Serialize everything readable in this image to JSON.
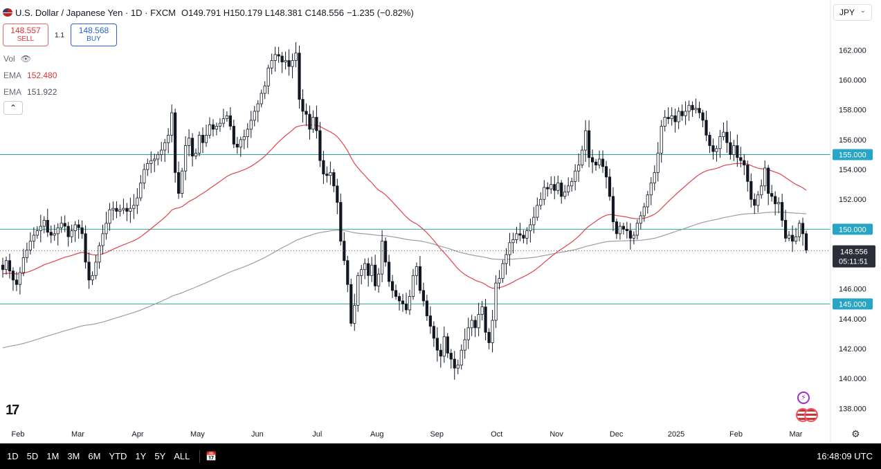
{
  "header": {
    "symbol": "U.S. Dollar / Japanese Yen · 1D · FXCM",
    "open_label": "O",
    "open": "149.791",
    "high_label": "H",
    "high": "150.179",
    "low_label": "L",
    "low": "148.381",
    "close_label": "C",
    "close": "148.556",
    "change": "−1.235 (−0.82%)"
  },
  "trade": {
    "sell_price": "148.557",
    "sell_label": "SELL",
    "spread": "1.1",
    "buy_price": "148.568",
    "buy_label": "BUY"
  },
  "indicators": {
    "vol_label": "Vol",
    "ema1_label": "EMA",
    "ema1_value": "152.480",
    "ema2_label": "EMA",
    "ema2_value": "151.922"
  },
  "currency_selector": "JPY",
  "price_tag": {
    "price": "148.556",
    "countdown": "05:11:51"
  },
  "bottom_bar": {
    "ranges": [
      "1D",
      "5D",
      "1M",
      "3M",
      "6M",
      "YTD",
      "1Y",
      "5Y",
      "ALL"
    ],
    "clock": "16:48:09 UTC"
  },
  "colors": {
    "ema_fast": "#e0424b",
    "ema_slow": "#9e9e9e",
    "hline": "#26a69a",
    "candle": "#131722",
    "tag_bg": "#26a5c4",
    "last_bg": "#2a2e39"
  },
  "chart_data": {
    "type": "candlestick",
    "title": "U.S. Dollar / Japanese Yen",
    "timeframe": "1D",
    "ylim": [
      137,
      163.5
    ],
    "y_ticks": [
      "138.000",
      "140.000",
      "142.000",
      "144.000",
      "146.000",
      "148.000",
      "150.000",
      "152.000",
      "154.000",
      "156.000",
      "158.000",
      "160.000",
      "162.000"
    ],
    "x_tick_labels": [
      "Feb",
      "Mar",
      "Apr",
      "May",
      "Jun",
      "Jul",
      "Aug",
      "Sep",
      "Oct",
      "Nov",
      "Dec",
      "2025",
      "Feb",
      "Mar"
    ],
    "horizontal_levels": [
      "155.000",
      "150.000",
      "145.000"
    ],
    "last_price": 148.556,
    "close_series": [
      147.3,
      147.9,
      147.2,
      146.6,
      146.3,
      147.1,
      148.1,
      148.6,
      149.2,
      149.6,
      149.9,
      150.2,
      150.6,
      149.8,
      149.6,
      149.7,
      150.1,
      150.4,
      150.2,
      149.5,
      149.9,
      150.3,
      150.1,
      149.7,
      147.8,
      146.6,
      146.9,
      147.8,
      148.9,
      149.7,
      150.4,
      151.3,
      151.4,
      151.2,
      151.3,
      151.4,
      151.2,
      151.4,
      151.6,
      152.1,
      153.1,
      154.0,
      154.4,
      154.6,
      154.7,
      155.0,
      155.3,
      155.8,
      156.3,
      157.8,
      153.8,
      152.4,
      153.9,
      155.6,
      156.1,
      154.9,
      155.1,
      156.3,
      155.8,
      156.3,
      157.0,
      156.7,
      156.9,
      157.1,
      157.4,
      157.6,
      156.9,
      155.7,
      155.5,
      156.0,
      156.2,
      156.7,
      157.3,
      157.9,
      158.4,
      159.1,
      159.6,
      160.8,
      161.3,
      161.7,
      161.6,
      161.2,
      161.3,
      160.9,
      161.3,
      161.8,
      158.7,
      157.9,
      157.7,
      156.7,
      157.5,
      156.6,
      154.6,
      153.7,
      153.6,
      153.8,
      152.9,
      151.8,
      149.2,
      147.9,
      146.3,
      143.7,
      144.9,
      146.9,
      147.3,
      147.7,
      146.9,
      147.6,
      146.2,
      147.0,
      149.2,
      147.8,
      146.5,
      145.9,
      145.5,
      145.2,
      145.0,
      144.6,
      145.5,
      146.9,
      147.5,
      145.9,
      145.2,
      144.2,
      143.5,
      142.7,
      141.9,
      141.5,
      142.8,
      141.7,
      141.3,
      140.7,
      140.9,
      141.9,
      142.6,
      143.4,
      143.9,
      143.4,
      144.3,
      144.8,
      143.1,
      142.4,
      143.9,
      146.4,
      146.7,
      147.7,
      148.3,
      149.1,
      149.3,
      149.7,
      149.6,
      149.4,
      149.9,
      150.3,
      150.8,
      151.6,
      152.0,
      152.8,
      152.7,
      153.0,
      152.6,
      153.1,
      152.2,
      152.5,
      152.9,
      153.2,
      153.9,
      154.3,
      155.3,
      156.6,
      154.8,
      154.5,
      154.3,
      154.7,
      154.2,
      153.5,
      152.2,
      150.5,
      149.7,
      150.2,
      150.0,
      149.9,
      149.4,
      149.6,
      150.4,
      150.9,
      151.5,
      152.3,
      153.1,
      153.8,
      155.1,
      156.9,
      157.5,
      157.4,
      157.6,
      157.2,
      157.9,
      157.6,
      157.9,
      158.3,
      158.0,
      158.1,
      157.8,
      157.3,
      156.3,
      155.6,
      155.2,
      155.4,
      156.2,
      156.5,
      155.8,
      155.0,
      155.6,
      154.8,
      154.6,
      154.3,
      153.2,
      152.0,
      151.6,
      152.3,
      152.9,
      154.1,
      152.4,
      152.2,
      151.7,
      151.8,
      150.6,
      149.4,
      149.6,
      149.2,
      149.5,
      150.4,
      149.7,
      148.6
    ],
    "ema_fast_last": 152.48,
    "ema_slow_last": 151.922
  }
}
